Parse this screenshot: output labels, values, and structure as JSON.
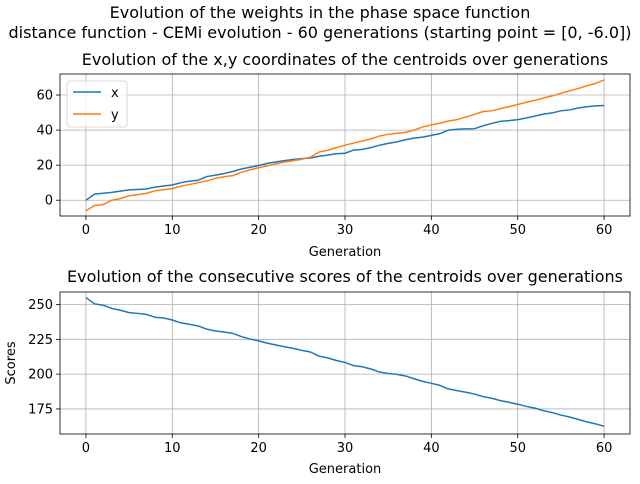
{
  "figure": {
    "title_line1": "Evolution of the weights in the phase space  function",
    "title_line2": "distance function - CEMi evolution - 60 generations (starting point = [0, -6.0])"
  },
  "colors": {
    "x": "#1f77b4",
    "y": "#ff7f0e",
    "scores": "#1f77b4",
    "grid": "#b0b0b0"
  },
  "chart_data": [
    {
      "type": "line",
      "title": "Evolution of the x,y coordinates of the centroids over generations",
      "xlabel": "Generation",
      "ylabel": "",
      "xlim": [
        -3,
        63
      ],
      "ylim": [
        -9,
        72
      ],
      "xticks": [
        0,
        10,
        20,
        30,
        40,
        50,
        60
      ],
      "yticks": [
        0,
        20,
        40,
        60
      ],
      "grid": true,
      "legend": "top-left",
      "x": [
        0,
        1,
        2,
        3,
        4,
        5,
        6,
        7,
        8,
        9,
        10,
        11,
        12,
        13,
        14,
        15,
        16,
        17,
        18,
        19,
        20,
        21,
        22,
        23,
        24,
        25,
        26,
        27,
        28,
        29,
        30,
        31,
        32,
        33,
        34,
        35,
        36,
        37,
        38,
        39,
        40,
        41,
        42,
        43,
        44,
        45,
        46,
        47,
        48,
        49,
        50,
        51,
        52,
        53,
        54,
        55,
        56,
        57,
        58,
        59,
        60
      ],
      "series": [
        {
          "name": "x",
          "color": "#1f77b4",
          "values": [
            0,
            3.5,
            4,
            4.5,
            5.2,
            5.9,
            6.1,
            6.4,
            7.5,
            8.1,
            8.7,
            10,
            10.9,
            11.4,
            13.5,
            14.3,
            15.2,
            16.4,
            17.8,
            18.8,
            19.8,
            21,
            21.9,
            22.6,
            23.2,
            23.7,
            24.1,
            25.1,
            25.7,
            26.5,
            26.8,
            28.6,
            29,
            30,
            31.4,
            32.4,
            33.3,
            34.5,
            35.4,
            36,
            37,
            38,
            40,
            40.5,
            40.7,
            40.8,
            42.5,
            43.8,
            45,
            45.4,
            46,
            46.9,
            48,
            49.1,
            49.8,
            51,
            51.5,
            52.6,
            53.3,
            53.8,
            54
          ]
        },
        {
          "name": "y",
          "color": "#ff7f0e",
          "values": [
            -6,
            -3,
            -2.5,
            0,
            1,
            2.5,
            3.2,
            3.9,
            5.4,
            6,
            6.7,
            8,
            9,
            10,
            11,
            12.5,
            13.4,
            14,
            16,
            17.3,
            18.6,
            19.6,
            20.8,
            21.8,
            22.6,
            23.4,
            24.6,
            27.5,
            28.5,
            30,
            31.4,
            32.6,
            33.8,
            35,
            36.6,
            37.6,
            38.2,
            38.7,
            40,
            41.8,
            43,
            44,
            45.2,
            46,
            47.5,
            49,
            50.6,
            51,
            52.3,
            53.4,
            54.6,
            55.9,
            57,
            58.3,
            59.5,
            61,
            62.4,
            63.7,
            65.3,
            66.6,
            68.6
          ]
        }
      ]
    },
    {
      "type": "line",
      "title": "Evolution of the consecutive scores of the centroids over generations",
      "xlabel": "Generation",
      "ylabel": "Scores",
      "xlim": [
        -3,
        63
      ],
      "ylim": [
        157,
        259
      ],
      "xticks": [
        0,
        10,
        20,
        30,
        40,
        50,
        60
      ],
      "yticks": [
        175,
        200,
        225,
        250
      ],
      "grid": true,
      "x": [
        0,
        1,
        2,
        3,
        4,
        5,
        6,
        7,
        8,
        9,
        10,
        11,
        12,
        13,
        14,
        15,
        16,
        17,
        18,
        19,
        20,
        21,
        22,
        23,
        24,
        25,
        26,
        27,
        28,
        29,
        30,
        31,
        32,
        33,
        34,
        35,
        36,
        37,
        38,
        39,
        40,
        41,
        42,
        43,
        44,
        45,
        46,
        47,
        48,
        49,
        50,
        51,
        52,
        53,
        54,
        55,
        56,
        57,
        58,
        59,
        60
      ],
      "series": [
        {
          "color": "#1f77b4",
          "values": [
            255,
            250.5,
            249.5,
            247.2,
            245.9,
            244.2,
            243.6,
            242.9,
            240.9,
            240.3,
            238.9,
            236.8,
            235.8,
            234.6,
            232.3,
            231,
            230.3,
            229.3,
            227,
            225.2,
            223.9,
            222.3,
            220.9,
            219.7,
            218.5,
            217.1,
            215.9,
            212.9,
            211.7,
            209.8,
            208.4,
            206.1,
            205.3,
            203.7,
            201.5,
            200.5,
            199.8,
            198.7,
            196.7,
            194.8,
            193.4,
            191.9,
            189.3,
            188.1,
            187,
            185.7,
            183.8,
            182.7,
            181,
            179.8,
            178.4,
            176.8,
            175.6,
            173.7,
            172.4,
            170.6,
            169.2,
            167.5,
            165.7,
            164.3,
            162.5
          ]
        }
      ]
    }
  ]
}
